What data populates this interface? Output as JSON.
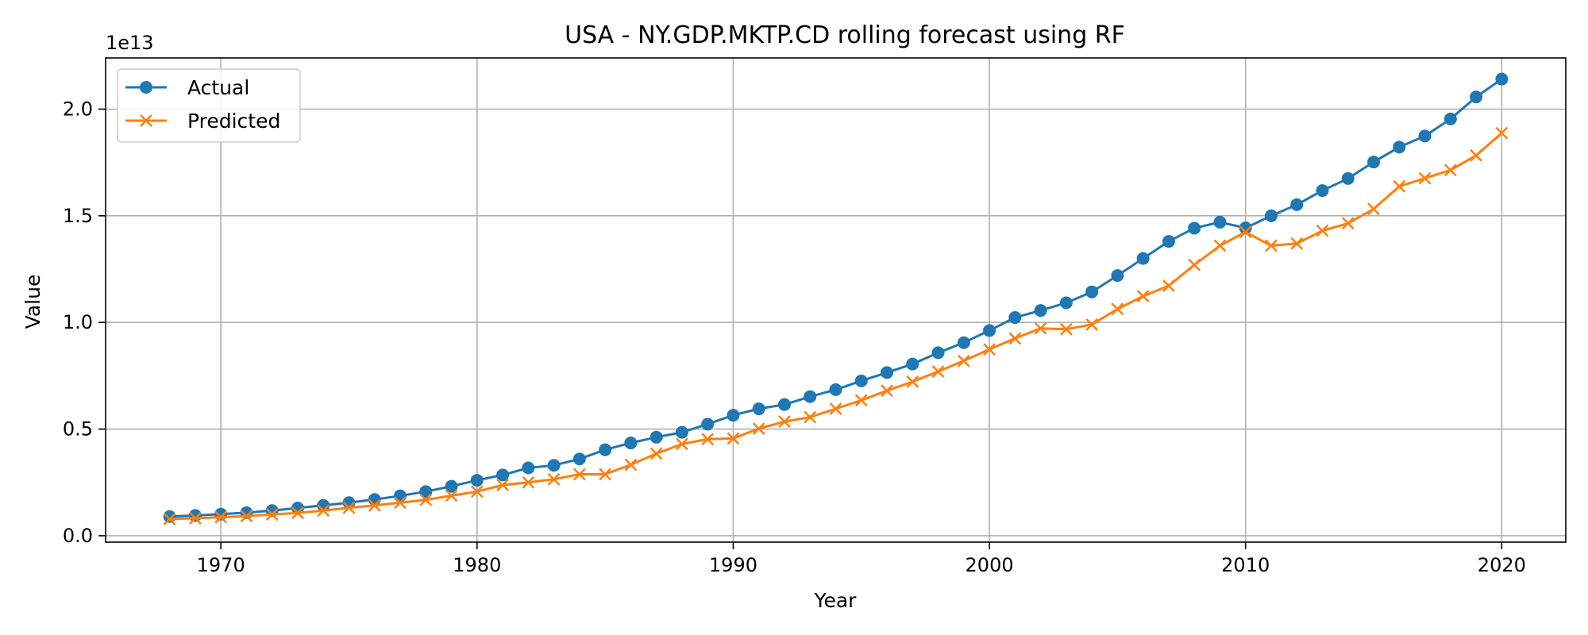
{
  "chart_data": {
    "type": "line",
    "title": "USA - NY.GDP.MKTP.CD rolling forecast using RF",
    "xlabel": "Year",
    "ylabel": "Value",
    "y_offset_label": "1e13",
    "xlim": [
      1965.5,
      2022.5
    ],
    "ylim": [
      -0.03,
      2.24
    ],
    "y_scale_note": "values in units of 1e13",
    "x_ticks": [
      1970,
      1980,
      1990,
      2000,
      2010,
      2020
    ],
    "x_tick_labels": [
      "1970",
      "1980",
      "1990",
      "2000",
      "2010",
      "2020"
    ],
    "y_ticks": [
      0.0,
      0.5,
      1.0,
      1.5,
      2.0
    ],
    "y_tick_labels": [
      "0.0",
      "0.5",
      "1.0",
      "1.5",
      "2.0"
    ],
    "grid": true,
    "legend_position": "top-left",
    "x": [
      1968,
      1969,
      1970,
      1971,
      1972,
      1973,
      1974,
      1975,
      1976,
      1977,
      1978,
      1979,
      1980,
      1981,
      1982,
      1983,
      1984,
      1985,
      1986,
      1987,
      1988,
      1989,
      1990,
      1991,
      1992,
      1993,
      1994,
      1995,
      1996,
      1997,
      1998,
      1999,
      2000,
      2001,
      2002,
      2003,
      2004,
      2005,
      2006,
      2007,
      2008,
      2009,
      2010,
      2011,
      2012,
      2013,
      2014,
      2015,
      2016,
      2017,
      2018,
      2019,
      2020
    ],
    "series": [
      {
        "name": "Actual",
        "color": "#1f77b4",
        "marker": "circle",
        "values": [
          0.09,
          0.095,
          0.101,
          0.108,
          0.118,
          0.13,
          0.142,
          0.155,
          0.17,
          0.187,
          0.207,
          0.232,
          0.26,
          0.285,
          0.318,
          0.33,
          0.36,
          0.403,
          0.435,
          0.462,
          0.485,
          0.523,
          0.565,
          0.595,
          0.615,
          0.652,
          0.685,
          0.726,
          0.765,
          0.805,
          0.858,
          0.905,
          0.962,
          1.023,
          1.056,
          1.092,
          1.143,
          1.22,
          1.3,
          1.38,
          1.442,
          1.47,
          1.443,
          1.5,
          1.552,
          1.618,
          1.675,
          1.752,
          1.822,
          1.874,
          1.954,
          2.057,
          2.141
        ]
      },
      {
        "name": "Predicted",
        "color": "#ff7f0e",
        "marker": "x",
        "values": [
          0.078,
          0.082,
          0.087,
          0.092,
          0.1,
          0.107,
          0.118,
          0.131,
          0.142,
          0.155,
          0.168,
          0.188,
          0.207,
          0.238,
          0.25,
          0.265,
          0.288,
          0.288,
          0.333,
          0.385,
          0.43,
          0.453,
          0.456,
          0.502,
          0.535,
          0.556,
          0.595,
          0.635,
          0.68,
          0.722,
          0.77,
          0.82,
          0.874,
          0.925,
          0.972,
          0.968,
          0.99,
          1.063,
          1.123,
          1.172,
          1.27,
          1.36,
          1.424,
          1.36,
          1.37,
          1.43,
          1.465,
          1.532,
          1.638,
          1.676,
          1.714,
          1.783,
          1.888
        ]
      }
    ]
  }
}
